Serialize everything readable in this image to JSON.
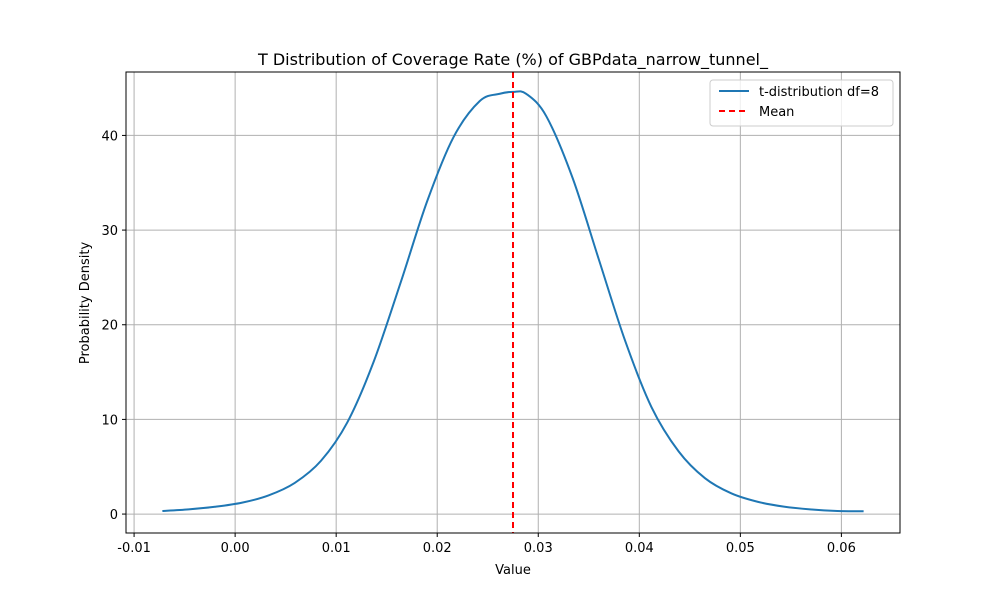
{
  "chart_data": {
    "type": "line",
    "title": "T Distribution of Coverage Rate (%) of GBPdata_narrow_tunnel_",
    "xlabel": "Value",
    "ylabel": "Probability Density",
    "xlim": [
      -0.0108,
      0.0658
    ],
    "ylim": [
      -2.0,
      46.7
    ],
    "x_ticks": [
      -0.01,
      0.0,
      0.01,
      0.02,
      0.03,
      0.04,
      0.05,
      0.06
    ],
    "x_tick_labels": [
      "-0.01",
      "0.00",
      "0.01",
      "0.02",
      "0.03",
      "0.04",
      "0.05",
      "0.06"
    ],
    "y_ticks": [
      0,
      10,
      20,
      30,
      40
    ],
    "y_tick_labels": [
      "0",
      "10",
      "20",
      "30",
      "40"
    ],
    "grid": true,
    "legend_position": "top-right",
    "series": [
      {
        "name": "t-distribution df=8",
        "kind": "line",
        "color": "#1f77b4",
        "x": [
          -0.0072,
          -0.0046,
          -0.002,
          0.0007,
          0.0033,
          0.0059,
          0.0085,
          0.0111,
          0.0137,
          0.0164,
          0.019,
          0.0216,
          0.0242,
          0.0262,
          0.0275,
          0.0288,
          0.0308,
          0.0334,
          0.036,
          0.0386,
          0.0412,
          0.0439,
          0.0465,
          0.0491,
          0.0517,
          0.0543,
          0.0569,
          0.0596,
          0.0622
        ],
        "y": [
          0.33,
          0.5,
          0.77,
          1.21,
          1.97,
          3.29,
          5.63,
          9.68,
          16.06,
          24.52,
          33.03,
          39.79,
          43.62,
          44.4,
          44.6,
          44.4,
          42.02,
          35.5,
          26.88,
          18.3,
          11.31,
          6.61,
          3.79,
          2.19,
          1.3,
          0.79,
          0.5,
          0.33,
          0.3
        ]
      },
      {
        "name": "Mean",
        "kind": "vline",
        "color": "#ff0000",
        "x_value": 0.0275
      }
    ]
  }
}
